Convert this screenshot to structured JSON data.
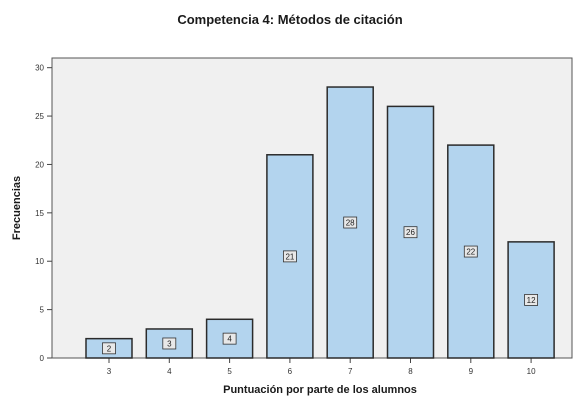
{
  "chart_data": {
    "type": "bar",
    "title": "Competencia 4: Métodos de citación",
    "xlabel": "Puntuación por parte de los alumnos",
    "ylabel": "Frecuencias",
    "categories": [
      "3",
      "4",
      "5",
      "6",
      "7",
      "8",
      "9",
      "10"
    ],
    "values": [
      2,
      3,
      4,
      21,
      28,
      26,
      22,
      12
    ],
    "data_labels": [
      "2",
      "3",
      "4",
      "21",
      "28",
      "26",
      "22",
      "12"
    ],
    "ylim": [
      0,
      31
    ],
    "yticks": [
      0,
      5,
      10,
      15,
      20,
      25,
      30
    ],
    "grid": false,
    "legend": "none",
    "colors": {
      "bar_fill": "#b3d4ee",
      "bar_stroke": "#2b2b2b",
      "plot_background": "#f0f0f0",
      "plot_border": "#555555"
    }
  }
}
